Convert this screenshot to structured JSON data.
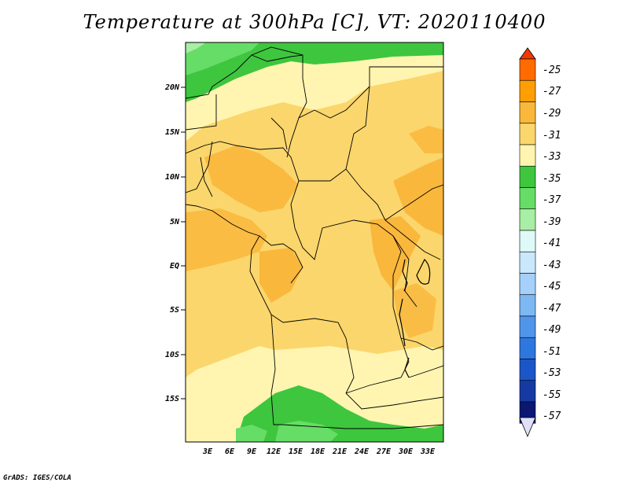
{
  "title": "Temperature at 300hPa [C], VT: 2020110400",
  "credit": "GrADS: IGES/COLA",
  "lat_labels": [
    "20N",
    "15N",
    "10N",
    "5N",
    "EQ",
    "5S",
    "10S",
    "15S"
  ],
  "lon_labels": [
    "3E",
    "6E",
    "9E",
    "12E",
    "15E",
    "18E",
    "21E",
    "24E",
    "27E",
    "30E",
    "33E"
  ],
  "colorbar": {
    "labels": [
      "-25",
      "-27",
      "-29",
      "-31",
      "-33",
      "-35",
      "-37",
      "-39",
      "-41",
      "-43",
      "-45",
      "-47",
      "-49",
      "-51",
      "-53",
      "-55",
      "-57"
    ],
    "colors": [
      "#ee3a00",
      "#ff6b00",
      "#ff9e00",
      "#f9b73c",
      "#fbd66c",
      "#fff5b0",
      "#3ec63e",
      "#66dd66",
      "#a8eea6",
      "#dff9f9",
      "#c9e8fb",
      "#a6d0f9",
      "#7eb8f3",
      "#4f96eb",
      "#2d77de",
      "#1b56c8",
      "#153aa4",
      "#0a1872",
      "#e0e0f8"
    ]
  },
  "map_colors": {
    "t33": "#fbd66c",
    "t35": "#fff5b0",
    "t31": "#f9b73c",
    "t37": "#3ec63e",
    "t39": "#66dd66",
    "t41": "#a8eea6"
  }
}
